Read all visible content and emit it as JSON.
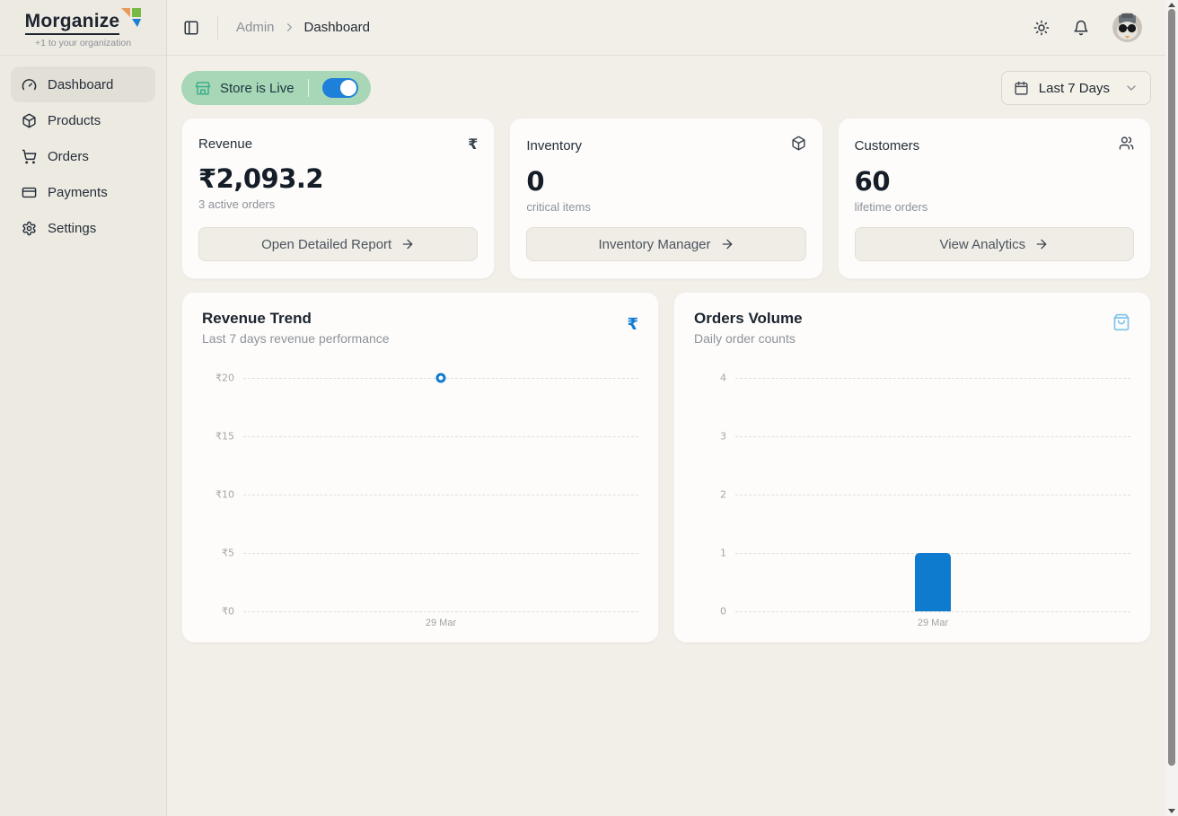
{
  "brand": {
    "name": "Morganize",
    "tagline": "+1 to your organization"
  },
  "sidebar": {
    "items": [
      {
        "label": "Dashboard",
        "icon": "gauge-icon",
        "active": true
      },
      {
        "label": "Products",
        "icon": "package-icon",
        "active": false
      },
      {
        "label": "Orders",
        "icon": "cart-icon",
        "active": false
      },
      {
        "label": "Payments",
        "icon": "credit-card-icon",
        "active": false
      },
      {
        "label": "Settings",
        "icon": "gear-icon",
        "active": false
      }
    ]
  },
  "header": {
    "breadcrumb": {
      "section": "Admin",
      "page": "Dashboard"
    },
    "right_icons": [
      "sun-icon",
      "bell-icon",
      "avatar"
    ]
  },
  "toolbar": {
    "store_pill": {
      "label": "Store is Live",
      "icon": "store-icon",
      "toggle_on": true
    },
    "date_filter": {
      "label": "Last 7 Days",
      "icon": "calendar-icon"
    }
  },
  "glyphs": {
    "rupee": "₹"
  },
  "stats": [
    {
      "title": "Revenue",
      "icon": "rupee-icon",
      "value": "₹2,093.2",
      "subtitle": "3 active orders",
      "button_label": "Open Detailed Report"
    },
    {
      "title": "Inventory",
      "icon": "package-icon",
      "value": "0",
      "subtitle": "critical items",
      "button_label": "Inventory Manager"
    },
    {
      "title": "Customers",
      "icon": "users-icon",
      "value": "60",
      "subtitle": "lifetime orders",
      "button_label": "View Analytics"
    }
  ],
  "chart_data": [
    {
      "type": "scatter",
      "title": "Revenue Trend",
      "subtitle": "Last 7 days revenue performance",
      "icon": "rupee-icon",
      "x": [
        "29 Mar"
      ],
      "values": [
        20.9
      ],
      "yticks": [
        "₹20",
        "₹15",
        "₹10",
        "₹5",
        "₹0"
      ],
      "ylim": [
        0,
        20.9
      ],
      "grid": true,
      "legend": false,
      "point_color": "#0f7bce"
    },
    {
      "type": "bar",
      "title": "Orders Volume",
      "subtitle": "Daily order counts",
      "icon": "shopping-bag-icon",
      "categories": [
        "29 Mar"
      ],
      "values": [
        1
      ],
      "yticks": [
        "4",
        "3",
        "2",
        "1",
        "0"
      ],
      "ylim": [
        0,
        4
      ],
      "grid": true,
      "legend": false,
      "bar_color": "#0f7bce"
    }
  ],
  "colors": {
    "accent_blue": "#127cd6",
    "chart_blue": "#0f7bce",
    "pill_green_bg": "#a7d7b6",
    "pill_icon_green": "#3fae8c",
    "toggle_blue": "#1f80d9",
    "bag_icon_blue": "#7cc3ee",
    "sidebar_bg": "#edeae2",
    "main_bg": "#f2efe8",
    "card_bg": "#fdfcfa",
    "logo_orange": "#e89a57",
    "logo_green": "#77b944",
    "logo_blue": "#1e7fd0"
  }
}
